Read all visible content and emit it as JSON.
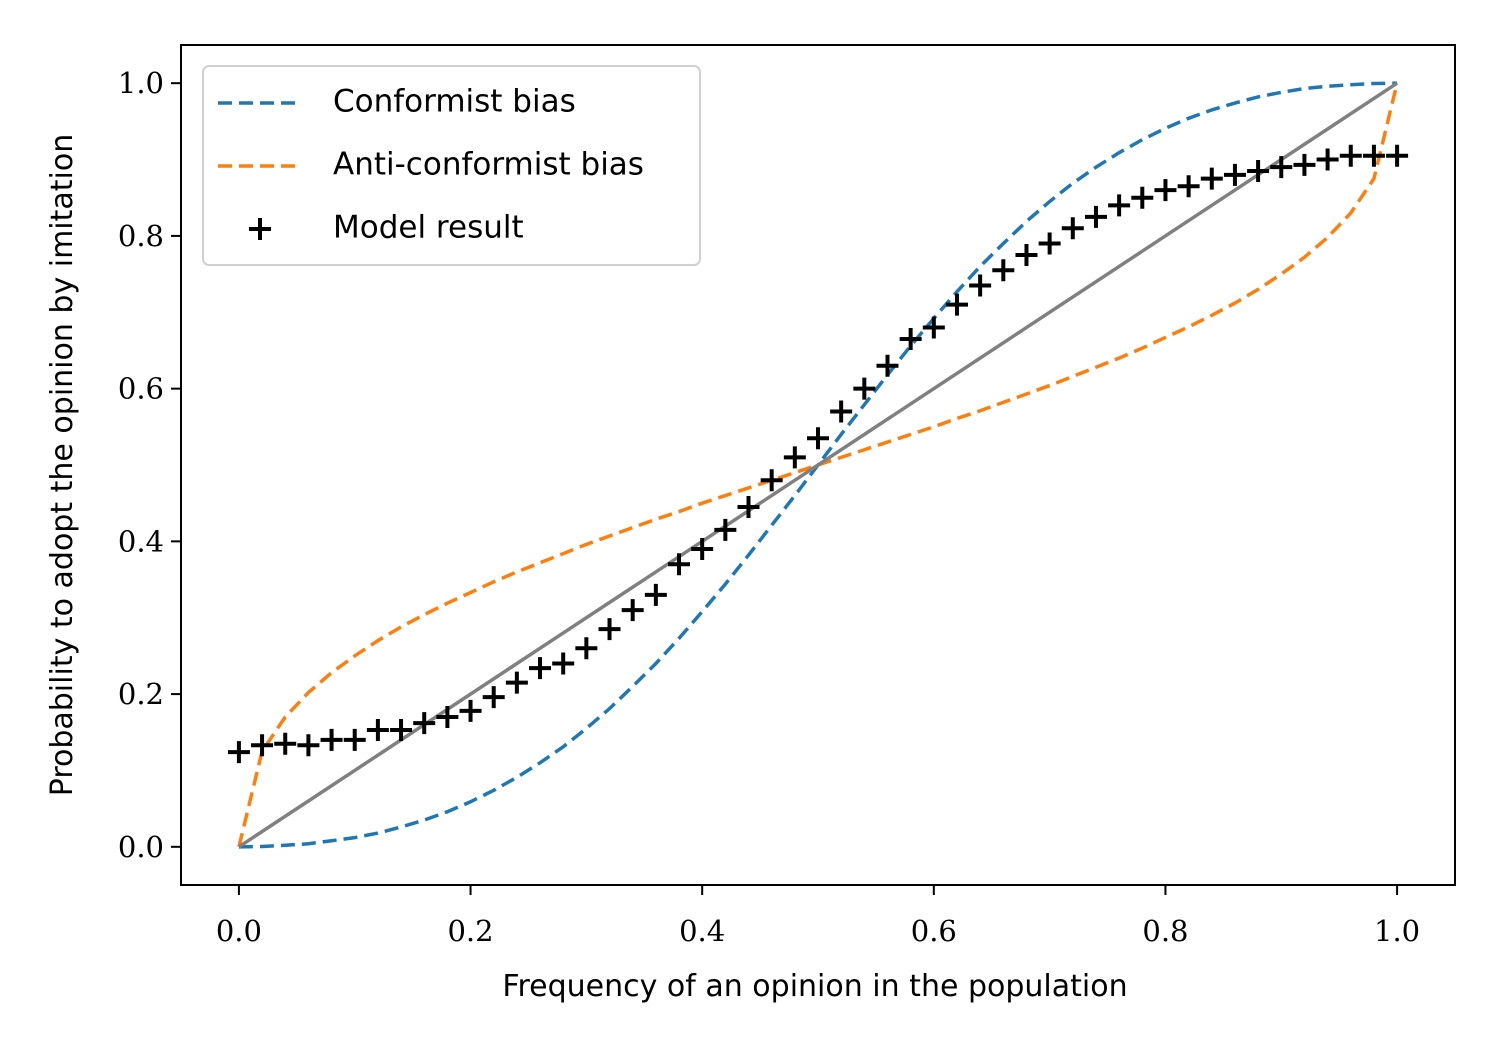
{
  "chart_data": {
    "type": "line",
    "xlabel": "Frequency of an opinion in the population",
    "ylabel": "Probability to adopt the opinion by imitation",
    "x": [
      0,
      0.02,
      0.04,
      0.06,
      0.08,
      0.1,
      0.12,
      0.14,
      0.16,
      0.18,
      0.2,
      0.22,
      0.24,
      0.26,
      0.28,
      0.3,
      0.32,
      0.34,
      0.36,
      0.38,
      0.4,
      0.42,
      0.44,
      0.46,
      0.48,
      0.5,
      0.52,
      0.54,
      0.56,
      0.58,
      0.6,
      0.62,
      0.64,
      0.66,
      0.68,
      0.7,
      0.72,
      0.74,
      0.76,
      0.78,
      0.8,
      0.82,
      0.84,
      0.86,
      0.88,
      0.9,
      0.92,
      0.94,
      0.96,
      0.98,
      1
    ],
    "series": [
      {
        "name": "Conformist bias",
        "color": "#1f77b4",
        "linestyle": "dashed",
        "values": [
          0,
          0.0004,
          0.002,
          0.004,
          0.008,
          0.012,
          0.018,
          0.026,
          0.035,
          0.046,
          0.059,
          0.074,
          0.091,
          0.11,
          0.131,
          0.155,
          0.181,
          0.21,
          0.24,
          0.273,
          0.308,
          0.344,
          0.382,
          0.421,
          0.46,
          0.5,
          0.54,
          0.579,
          0.618,
          0.656,
          0.692,
          0.727,
          0.76,
          0.79,
          0.819,
          0.845,
          0.869,
          0.89,
          0.909,
          0.926,
          0.941,
          0.954,
          0.965,
          0.974,
          0.982,
          0.988,
          0.993,
          0.996,
          0.998,
          0.9996,
          1
        ]
      },
      {
        "name": "Anti-conformist bias",
        "color": "#ff7f0e",
        "linestyle": "dashed",
        "values": [
          0,
          0.125,
          0.17,
          0.202,
          0.228,
          0.25,
          0.27,
          0.288,
          0.304,
          0.319,
          0.333,
          0.347,
          0.36,
          0.372,
          0.384,
          0.396,
          0.407,
          0.418,
          0.429,
          0.439,
          0.45,
          0.46,
          0.47,
          0.48,
          0.49,
          0.5,
          0.51,
          0.52,
          0.53,
          0.54,
          0.55,
          0.561,
          0.571,
          0.582,
          0.593,
          0.604,
          0.616,
          0.628,
          0.64,
          0.653,
          0.667,
          0.681,
          0.696,
          0.712,
          0.73,
          0.75,
          0.772,
          0.798,
          0.83,
          0.875,
          1
        ]
      },
      {
        "color": "#808080",
        "linestyle": "solid",
        "x": [
          0,
          1
        ],
        "values": [
          0,
          1
        ]
      },
      {
        "name": "Model result",
        "color": "#000000",
        "marker": "+",
        "values": [
          0.124,
          0.133,
          0.135,
          0.133,
          0.14,
          0.14,
          0.153,
          0.153,
          0.162,
          0.17,
          0.178,
          0.196,
          0.215,
          0.234,
          0.24,
          0.26,
          0.285,
          0.31,
          0.33,
          0.37,
          0.39,
          0.415,
          0.445,
          0.48,
          0.51,
          0.535,
          0.57,
          0.6,
          0.63,
          0.665,
          0.68,
          0.71,
          0.735,
          0.755,
          0.775,
          0.79,
          0.81,
          0.825,
          0.84,
          0.85,
          0.86,
          0.865,
          0.875,
          0.88,
          0.885,
          0.89,
          0.893,
          0.9,
          0.905,
          0.905,
          0.905
        ]
      }
    ],
    "xlim": [
      -0.05,
      1.05
    ],
    "ylim": [
      -0.05,
      1.05
    ],
    "xticks": [
      {
        "value": 0,
        "label": "0.0"
      },
      0.2,
      0.4,
      0.6,
      0.8,
      {
        "value": 1,
        "label": "1.0"
      }
    ],
    "yticks": [
      {
        "value": 0,
        "label": "0.0"
      },
      0.2,
      0.4,
      0.6,
      0.8,
      {
        "value": 1,
        "label": "1.0"
      }
    ],
    "legend": "upper left",
    "grid": false
  }
}
